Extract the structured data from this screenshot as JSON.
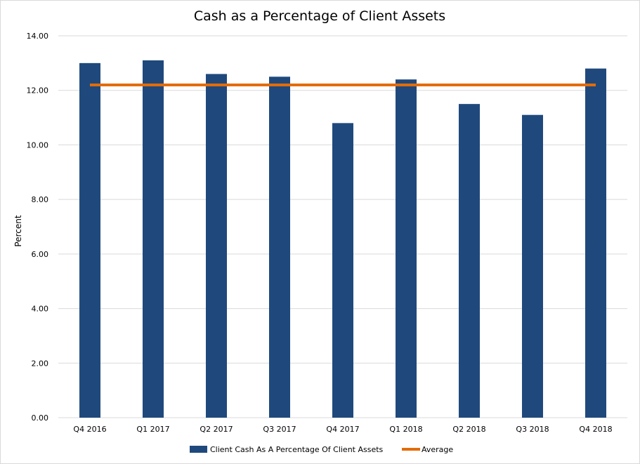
{
  "chart_data": {
    "type": "bar",
    "title": "Cash as a Percentage of Client Assets",
    "ylabel": "Percent",
    "xlabel": "",
    "ylim": [
      0,
      14
    ],
    "yticks": [
      "0.00",
      "2.00",
      "4.00",
      "6.00",
      "8.00",
      "10.00",
      "12.00",
      "14.00"
    ],
    "categories": [
      "Q4 2016",
      "Q1 2017",
      "Q2 2017",
      "Q3 2017",
      "Q4 2017",
      "Q1 2018",
      "Q2 2018",
      "Q3 2018",
      "Q4 2018"
    ],
    "series": [
      {
        "name": "Client Cash As A Percentage Of Client Assets",
        "type": "bar",
        "color": "#1f497d",
        "values": [
          13.0,
          13.1,
          12.6,
          12.5,
          10.8,
          12.4,
          11.5,
          11.1,
          12.8
        ]
      },
      {
        "name": "Average",
        "type": "line",
        "color": "#e36c09",
        "values": [
          12.2,
          12.2,
          12.2,
          12.2,
          12.2,
          12.2,
          12.2,
          12.2,
          12.2
        ]
      }
    ],
    "grid": true,
    "legend": "bottom"
  }
}
